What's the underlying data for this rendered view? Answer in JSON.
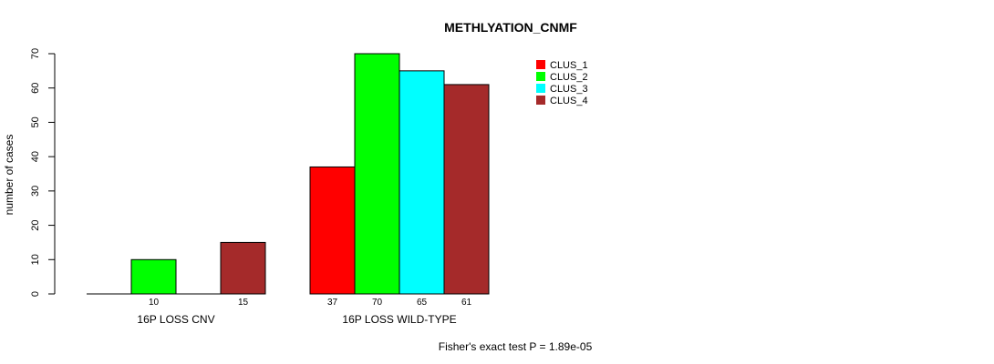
{
  "chart_data": {
    "type": "bar",
    "title": "METHLYATION_CNMF",
    "xlabel": "",
    "ylabel": "number of cases",
    "ylim": [
      0,
      70
    ],
    "yticks": [
      0,
      10,
      20,
      30,
      40,
      50,
      60,
      70
    ],
    "groups": [
      "16P LOSS CNV",
      "16P LOSS WILD-TYPE"
    ],
    "series": [
      {
        "name": "CLUS_1",
        "color": "#ff0000",
        "values": [
          0,
          37
        ]
      },
      {
        "name": "CLUS_2",
        "color": "#00ff00",
        "values": [
          10,
          70
        ]
      },
      {
        "name": "CLUS_3",
        "color": "#00ffff",
        "values": [
          0,
          65
        ]
      },
      {
        "name": "CLUS_4",
        "color": "#a52a2a",
        "values": [
          15,
          61
        ]
      }
    ],
    "bar_labels": [
      [
        "",
        "10",
        "",
        "15"
      ],
      [
        "37",
        "70",
        "65",
        "61"
      ]
    ],
    "legend": [
      "CLUS_1",
      "CLUS_2",
      "CLUS_3",
      "CLUS_4"
    ],
    "legend_position": "top-right",
    "grid": false,
    "footnote": "Fisher's exact test P = 1.89e-05"
  }
}
